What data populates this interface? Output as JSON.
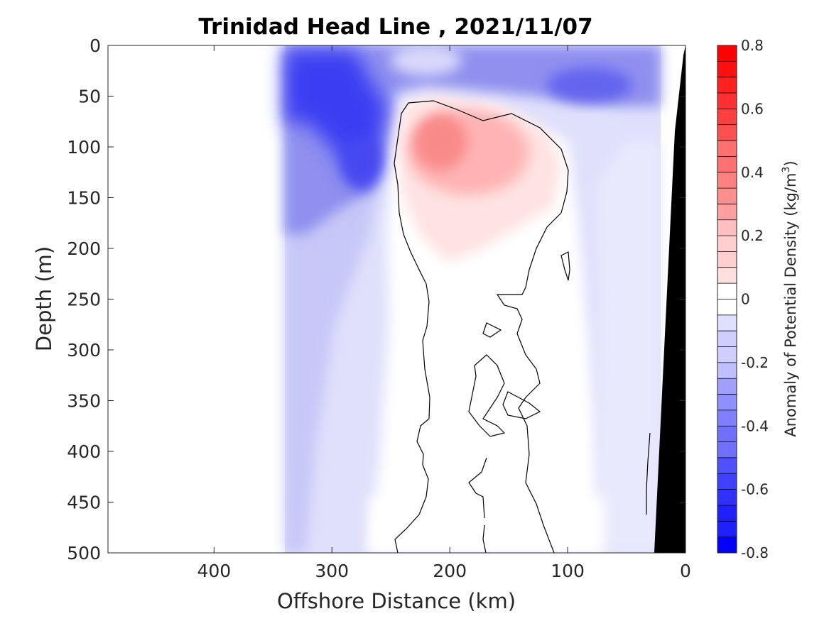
{
  "chart_data": {
    "type": "heatmap",
    "title": "Trinidad Head Line , 2021/11/07",
    "xlabel": "Offshore Distance (km)",
    "ylabel": "Depth (m)",
    "colorbar_label": "Anomaly of Potential Density (kg/m",
    "colorbar_label_superscript": "3",
    "colorbar_label_suffix": ")",
    "xlim": [
      490,
      0
    ],
    "ylim": [
      0,
      500
    ],
    "x_reversed": true,
    "y_reversed": true,
    "x_ticks": [
      400,
      300,
      200,
      100,
      0
    ],
    "y_ticks": [
      0,
      50,
      100,
      150,
      200,
      250,
      300,
      350,
      400,
      450,
      500
    ],
    "clim": [
      -0.8,
      0.8
    ],
    "colorbar_ticks": [
      0.8,
      0.6,
      0.4,
      0.2,
      0,
      -0.2,
      -0.4,
      -0.6,
      -0.8
    ],
    "colorbar_levels": 32,
    "colormap": "blue-white-red",
    "colors": {
      "negative": "#0000ff",
      "zero": "#ffffff",
      "positive": "#ff0000",
      "bathymetry": "#000000",
      "contour": "#000000"
    },
    "data_extent_x": [
      340,
      0
    ],
    "contour_level": 0,
    "features": [
      {
        "name": "positive anomaly core",
        "x_km": 210,
        "depth_m": 95,
        "value": 0.3
      },
      {
        "name": "surface negative anomaly",
        "x_km": 320,
        "depth_m": 40,
        "value": -0.6
      },
      {
        "name": "subsurface negative anomaly",
        "x_km": 280,
        "depth_m": 120,
        "value": -0.5
      },
      {
        "name": "nearshore negative band",
        "x_km": 100,
        "depth_m": 40,
        "value": -0.4
      }
    ]
  }
}
